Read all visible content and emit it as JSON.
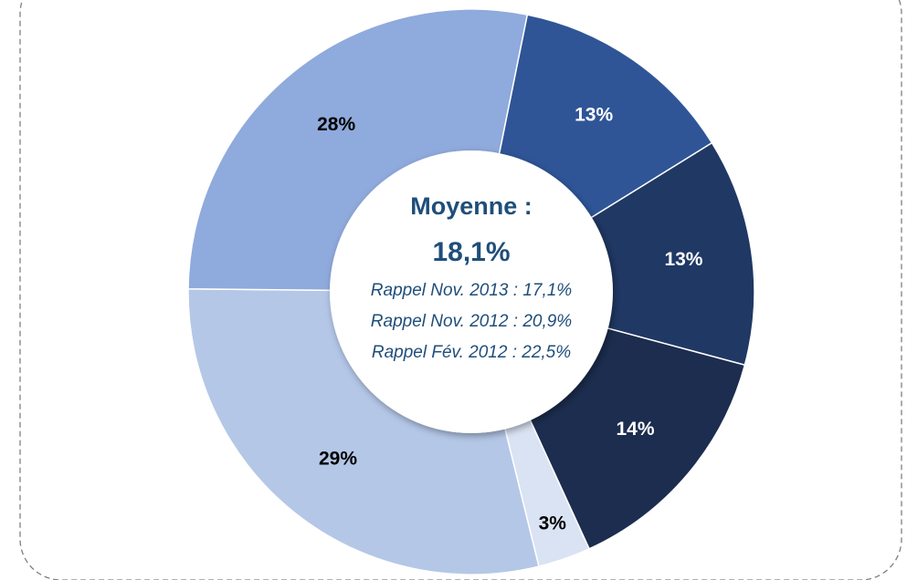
{
  "chart_data": {
    "type": "donut",
    "categories": [
      null,
      null,
      null,
      null,
      null,
      null
    ],
    "values": [
      13,
      13,
      14,
      3,
      29,
      28
    ],
    "value_labels": [
      "13%",
      "13%",
      "14%",
      "3%",
      "29%",
      "28%"
    ],
    "colors": [
      "#2f5597",
      "#203864",
      "#1c2d4f",
      "#dae3f3",
      "#b4c7e7",
      "#8faadc"
    ],
    "center_title": "Moyenne :",
    "center_value": "18,1%",
    "center_notes": [
      "Rappel Nov. 2013 : 17,1%",
      "Rappel Nov. 2012 : 20,9%",
      "Rappel Fév. 2012 : 22,5%"
    ]
  }
}
